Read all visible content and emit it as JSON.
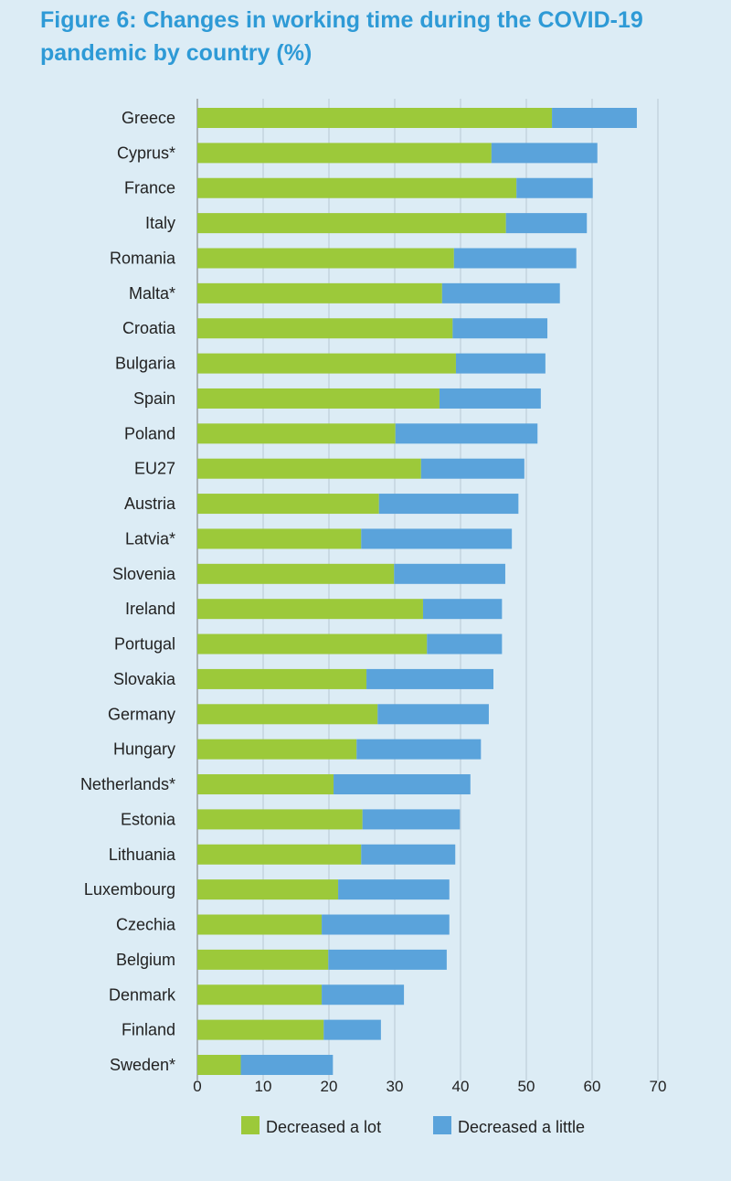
{
  "chart_data": {
    "type": "bar",
    "orientation": "horizontal",
    "stacked": true,
    "title": "Figure 6: Changes in working time during the COVID-19 pandemic by country (%)",
    "xlabel": "",
    "ylabel": "",
    "xlim": [
      0,
      70
    ],
    "xticks": [
      0,
      10,
      20,
      30,
      40,
      50,
      60,
      70
    ],
    "grid": "vertical",
    "legend_position": "bottom",
    "categories": [
      "Greece",
      "Cyprus*",
      "France",
      "Italy",
      "Romania",
      "Malta*",
      "Croatia",
      "Bulgaria",
      "Spain",
      "Poland",
      "EU27",
      "Austria",
      "Latvia*",
      "Slovenia",
      "Ireland",
      "Portugal",
      "Slovakia",
      "Germany",
      "Hungary",
      "Netherlands*",
      "Estonia",
      "Lithuania",
      "Luxembourg",
      "Czechia",
      "Belgium",
      "Denmark",
      "Finland",
      "Sweden*"
    ],
    "series": [
      {
        "name": "Decreased a lot",
        "color": "#9cc93a",
        "values": [
          53.9,
          44.7,
          48.5,
          46.9,
          39.0,
          37.2,
          38.8,
          39.3,
          36.8,
          30.1,
          34.0,
          27.6,
          24.9,
          29.9,
          34.3,
          34.9,
          25.7,
          27.4,
          24.2,
          20.7,
          25.1,
          24.9,
          21.4,
          18.9,
          19.9,
          18.9,
          19.2,
          6.6
        ]
      },
      {
        "name": "Decreased a little",
        "color": "#5aa3db",
        "values": [
          12.9,
          16.1,
          11.6,
          12.3,
          18.6,
          17.9,
          14.4,
          13.6,
          15.4,
          21.6,
          15.7,
          21.2,
          22.9,
          16.9,
          12.0,
          11.4,
          19.3,
          16.9,
          18.9,
          20.8,
          14.8,
          14.3,
          16.9,
          19.4,
          18.0,
          12.5,
          8.7,
          14.0
        ]
      }
    ]
  }
}
